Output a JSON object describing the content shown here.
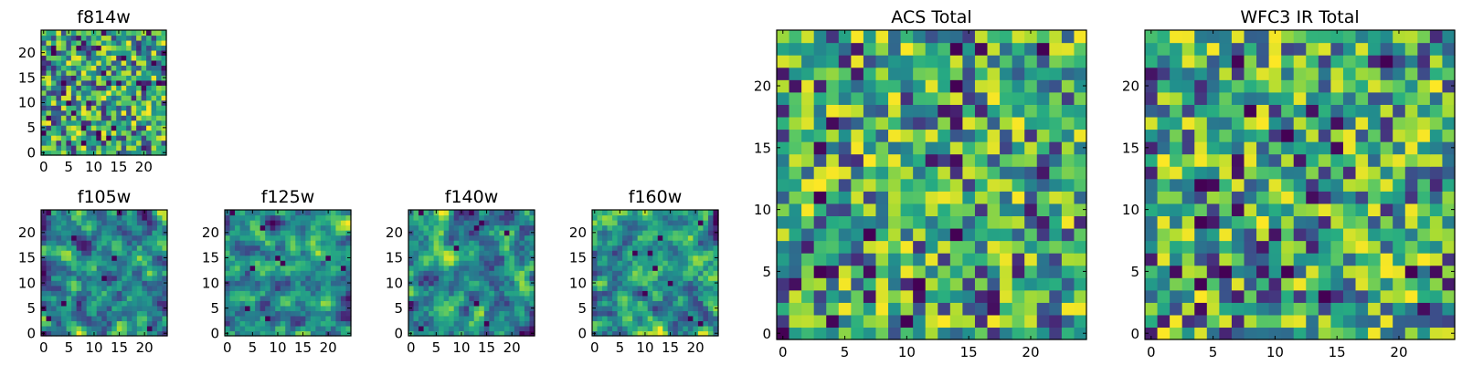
{
  "chart_data": [
    {
      "type": "heatmap",
      "title": "f814w",
      "size": 25,
      "xticks": [
        0,
        5,
        10,
        15,
        20
      ],
      "yticks": [
        0,
        5,
        10,
        15,
        20
      ],
      "xlim": [
        -0.5,
        24.5
      ],
      "ylim": [
        -0.5,
        24.5
      ],
      "colormap": "viridis",
      "value_range": [
        0,
        1
      ],
      "values_pattern": "noise",
      "seed": 11
    },
    {
      "type": "heatmap",
      "title": "f105w",
      "size": 25,
      "xticks": [
        0,
        5,
        10,
        15,
        20
      ],
      "yticks": [
        0,
        5,
        10,
        15,
        20
      ],
      "xlim": [
        -0.5,
        24.5
      ],
      "ylim": [
        -0.5,
        24.5
      ],
      "colormap": "viridis",
      "value_range": [
        0,
        1
      ],
      "values_pattern": "smooth-noise",
      "seed": 23
    },
    {
      "type": "heatmap",
      "title": "f125w",
      "size": 25,
      "xticks": [
        0,
        5,
        10,
        15,
        20
      ],
      "yticks": [
        0,
        5,
        10,
        15,
        20
      ],
      "xlim": [
        -0.5,
        24.5
      ],
      "ylim": [
        -0.5,
        24.5
      ],
      "colormap": "viridis",
      "value_range": [
        0,
        1
      ],
      "values_pattern": "smooth-noise",
      "seed": 37
    },
    {
      "type": "heatmap",
      "title": "f140w",
      "size": 25,
      "xticks": [
        0,
        5,
        10,
        15,
        20
      ],
      "yticks": [
        0,
        5,
        10,
        15,
        20
      ],
      "xlim": [
        -0.5,
        24.5
      ],
      "ylim": [
        -0.5,
        24.5
      ],
      "colormap": "viridis",
      "value_range": [
        0,
        1
      ],
      "values_pattern": "smooth-noise",
      "seed": 41
    },
    {
      "type": "heatmap",
      "title": "f160w",
      "size": 25,
      "xticks": [
        0,
        5,
        10,
        15,
        20
      ],
      "yticks": [
        0,
        5,
        10,
        15,
        20
      ],
      "xlim": [
        -0.5,
        24.5
      ],
      "ylim": [
        -0.5,
        24.5
      ],
      "colormap": "viridis",
      "value_range": [
        0,
        1
      ],
      "values_pattern": "smooth-noise",
      "seed": 53
    },
    {
      "type": "heatmap",
      "title": "ACS Total",
      "size": 25,
      "xticks": [
        0,
        5,
        10,
        15,
        20
      ],
      "yticks": [
        0,
        5,
        10,
        15,
        20
      ],
      "xlim": [
        -0.5,
        24.5
      ],
      "ylim": [
        -0.5,
        24.5
      ],
      "colormap": "viridis",
      "value_range": [
        0,
        1
      ],
      "values_pattern": "noise",
      "seed": 67
    },
    {
      "type": "heatmap",
      "title": "WFC3 IR Total",
      "size": 25,
      "xticks": [
        0,
        5,
        10,
        15,
        20
      ],
      "yticks": [
        0,
        5,
        10,
        15,
        20
      ],
      "xlim": [
        -0.5,
        24.5
      ],
      "ylim": [
        -0.5,
        24.5
      ],
      "colormap": "viridis",
      "value_range": [
        0,
        1
      ],
      "values_pattern": "noise",
      "seed": 79
    }
  ]
}
